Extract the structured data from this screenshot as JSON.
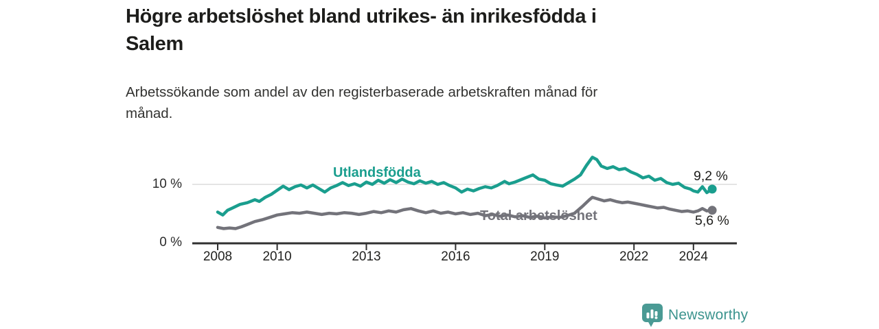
{
  "header": {
    "title_lines": [
      "Högre arbetslöshet bland utrikes- än inrikesfödda i",
      "Salem"
    ],
    "subtitle_lines": [
      "Arbetssökande som andel av den registerbaserade arbetskraften månad för",
      "månad."
    ]
  },
  "chart_data": {
    "type": "line",
    "title": "Högre arbetslöshet bland utrikes- än inrikesfödda i Salem",
    "subtitle": "Arbetssökande som andel av den registerbaserade arbetskraften månad för månad.",
    "unit": "percent",
    "grid": "single horizontal gridline at 10 %",
    "legend_position": "inline labels on lines",
    "x_axis": {
      "ticks": [
        2008,
        2010,
        2013,
        2016,
        2019,
        2022,
        2024
      ],
      "range": [
        2007.15,
        2025.45
      ]
    },
    "y_axis": {
      "ticks_pct": [
        10,
        0
      ],
      "tick_labels": [
        "10 %",
        "0 %"
      ],
      "range": [
        0,
        16
      ]
    },
    "series": [
      {
        "name": "Utlandsfödda",
        "color": "#1a9e8e",
        "end_label": "9,2 %",
        "end_value": 9.2,
        "x": [
          2008.0,
          2008.17,
          2008.33,
          2008.5,
          2008.75,
          2009.0,
          2009.25,
          2009.4,
          2009.6,
          2009.8,
          2010.0,
          2010.2,
          2010.4,
          2010.6,
          2010.8,
          2011.0,
          2011.2,
          2011.4,
          2011.6,
          2011.8,
          2012.0,
          2012.2,
          2012.4,
          2012.6,
          2012.8,
          2013.0,
          2013.2,
          2013.4,
          2013.6,
          2013.8,
          2014.0,
          2014.2,
          2014.4,
          2014.6,
          2014.8,
          2015.0,
          2015.2,
          2015.4,
          2015.6,
          2015.8,
          2016.0,
          2016.2,
          2016.4,
          2016.6,
          2016.8,
          2017.0,
          2017.2,
          2017.4,
          2017.65,
          2017.8,
          2018.0,
          2018.3,
          2018.6,
          2018.8,
          2019.0,
          2019.2,
          2019.4,
          2019.6,
          2019.8,
          2020.0,
          2020.2,
          2020.4,
          2020.6,
          2020.75,
          2020.9,
          2021.1,
          2021.3,
          2021.5,
          2021.7,
          2021.9,
          2022.1,
          2022.3,
          2022.5,
          2022.7,
          2022.9,
          2023.1,
          2023.3,
          2023.5,
          2023.7,
          2023.9,
          2024.0,
          2024.15,
          2024.3,
          2024.45,
          2024.63
        ],
        "values": [
          5.3,
          4.8,
          5.6,
          6.0,
          6.6,
          6.9,
          7.4,
          7.1,
          7.8,
          8.3,
          9.0,
          9.7,
          9.1,
          9.6,
          9.9,
          9.4,
          9.9,
          9.3,
          8.7,
          9.4,
          9.8,
          10.3,
          9.8,
          10.1,
          9.7,
          10.4,
          10.0,
          10.7,
          10.2,
          10.8,
          10.3,
          10.9,
          10.4,
          10.1,
          10.6,
          10.2,
          10.5,
          10.0,
          10.3,
          9.8,
          9.4,
          8.7,
          9.2,
          8.9,
          9.3,
          9.6,
          9.4,
          9.8,
          10.5,
          10.1,
          10.4,
          11.0,
          11.6,
          10.9,
          10.7,
          10.1,
          9.9,
          9.7,
          10.3,
          10.9,
          11.6,
          13.2,
          14.6,
          14.2,
          13.1,
          12.7,
          13.0,
          12.5,
          12.7,
          12.1,
          11.7,
          11.1,
          11.4,
          10.7,
          11.0,
          10.3,
          10.0,
          10.2,
          9.5,
          9.2,
          8.9,
          8.7,
          9.6,
          8.6,
          9.2
        ]
      },
      {
        "name": "Total arbetslöshet",
        "color": "#73737a",
        "end_label": "5,6 %",
        "end_value": 5.6,
        "x": [
          2008.0,
          2008.2,
          2008.4,
          2008.6,
          2008.8,
          2009.0,
          2009.25,
          2009.5,
          2009.75,
          2010.0,
          2010.25,
          2010.5,
          2010.75,
          2011.0,
          2011.25,
          2011.5,
          2011.75,
          2012.0,
          2012.25,
          2012.5,
          2012.75,
          2013.0,
          2013.25,
          2013.5,
          2013.75,
          2014.0,
          2014.25,
          2014.5,
          2014.75,
          2015.0,
          2015.25,
          2015.5,
          2015.75,
          2016.0,
          2016.25,
          2016.5,
          2016.75,
          2017.0,
          2017.25,
          2017.5,
          2017.75,
          2018.0,
          2018.25,
          2018.5,
          2018.75,
          2019.0,
          2019.25,
          2019.5,
          2019.75,
          2020.0,
          2020.25,
          2020.5,
          2020.6,
          2020.8,
          2021.0,
          2021.2,
          2021.4,
          2021.6,
          2021.8,
          2022.0,
          2022.2,
          2022.4,
          2022.6,
          2022.8,
          2023.0,
          2023.2,
          2023.4,
          2023.6,
          2023.8,
          2024.0,
          2024.15,
          2024.3,
          2024.45,
          2024.63
        ],
        "values": [
          2.7,
          2.5,
          2.6,
          2.5,
          2.8,
          3.2,
          3.7,
          4.0,
          4.4,
          4.8,
          5.0,
          5.2,
          5.1,
          5.3,
          5.1,
          4.9,
          5.1,
          5.0,
          5.2,
          5.1,
          4.9,
          5.1,
          5.4,
          5.2,
          5.5,
          5.3,
          5.7,
          5.9,
          5.5,
          5.2,
          5.5,
          5.1,
          5.3,
          5.0,
          5.2,
          4.9,
          5.1,
          4.7,
          4.9,
          4.6,
          4.8,
          4.5,
          4.7,
          4.4,
          4.6,
          4.3,
          4.5,
          4.4,
          4.7,
          5.1,
          6.2,
          7.4,
          7.8,
          7.5,
          7.2,
          7.4,
          7.1,
          6.9,
          7.0,
          6.8,
          6.6,
          6.4,
          6.2,
          6.0,
          6.1,
          5.8,
          5.6,
          5.4,
          5.5,
          5.3,
          5.5,
          5.9,
          5.5,
          5.6
        ]
      }
    ],
    "colors": {
      "gridline": "#dcdcdc",
      "axis": "#2f2f2f",
      "text": "#1d1d1b"
    }
  },
  "footer": {
    "brand": "Newsworthy",
    "logo_icon": "bar-chart-speech-bubble-icon",
    "brand_color": "#3c948e",
    "icon_color": "#4a9a94"
  }
}
